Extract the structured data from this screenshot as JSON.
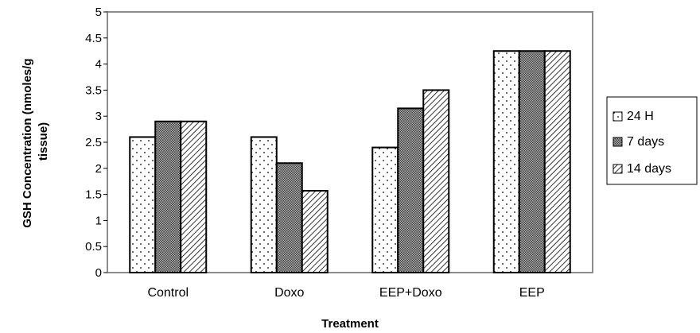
{
  "chart_data": {
    "type": "bar",
    "title": "",
    "xlabel": "Treatment",
    "ylabel_lines": [
      "GSH Concentration (nmoles/g",
      "tissue)"
    ],
    "categories": [
      "Control",
      "Doxo",
      "EEP+Doxo",
      "EEP"
    ],
    "series": [
      {
        "name": "24 H",
        "pattern": "dots",
        "values": [
          2.6,
          2.6,
          2.4,
          4.25
        ]
      },
      {
        "name": "7 days",
        "pattern": "crosshatch",
        "values": [
          2.9,
          2.1,
          3.15,
          4.25
        ]
      },
      {
        "name": "14 days",
        "pattern": "diagonal",
        "values": [
          2.9,
          1.57,
          3.5,
          4.25
        ]
      }
    ],
    "ylim": [
      0,
      5
    ],
    "yticks": [
      "0",
      "0.5",
      "1",
      "1.5",
      "2",
      "2.5",
      "3",
      "3.5",
      "4",
      "4.5",
      "5"
    ],
    "legend_position": "right",
    "grid": false,
    "frame_color": "#8c8c8c"
  }
}
